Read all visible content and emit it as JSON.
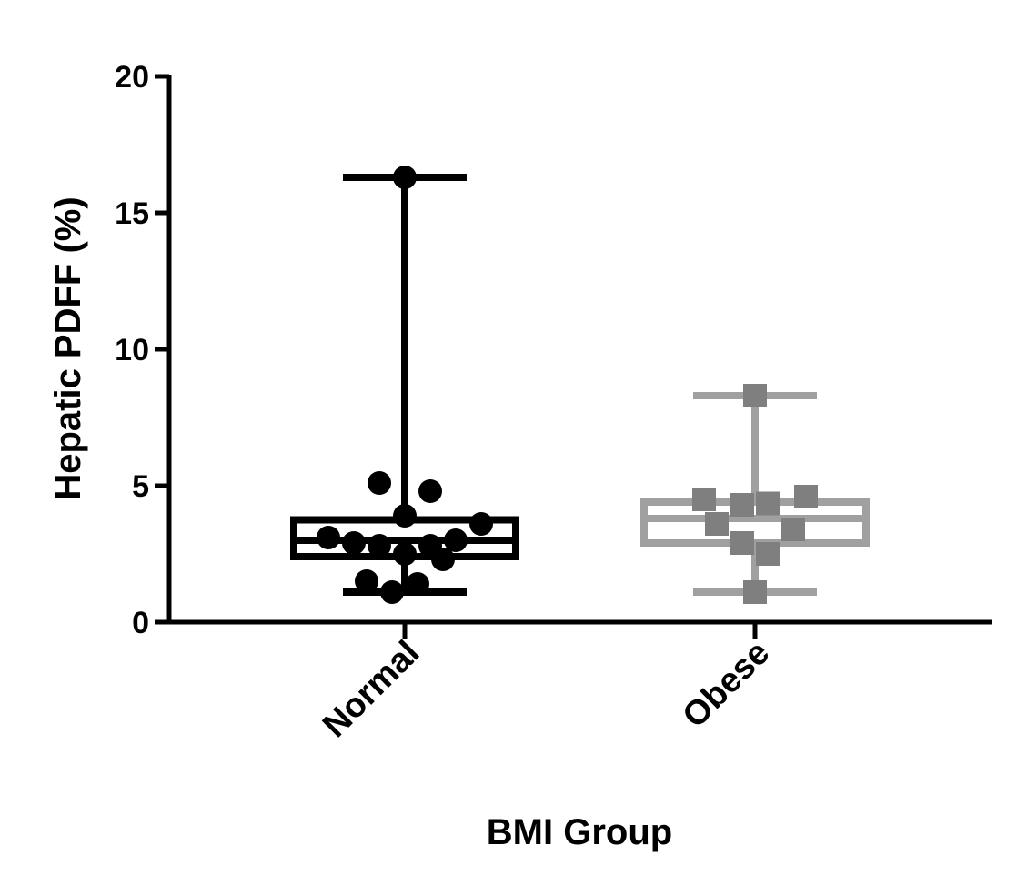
{
  "chart_data": {
    "type": "boxplot",
    "title": "",
    "xlabel": "BMI Group",
    "ylabel": "Hepatic PDFF  (%)",
    "ylim": [
      0,
      20
    ],
    "yticks": [
      0,
      5,
      10,
      15,
      20
    ],
    "categories": [
      "Normal",
      "Obese"
    ],
    "grid": false,
    "series": [
      {
        "category": "Normal",
        "color": "#000000",
        "marker": "circle",
        "box_fill": "none",
        "whisker_low": 1.1,
        "q1": 2.4,
        "median": 3.0,
        "q3": 3.75,
        "whisker_high": 16.3,
        "points": [
          {
            "offset": -0.3,
            "y": 3.1
          },
          {
            "offset": -0.2,
            "y": 2.9
          },
          {
            "offset": -0.1,
            "y": 5.1
          },
          {
            "offset": -0.1,
            "y": 2.8
          },
          {
            "offset": -0.15,
            "y": 1.5
          },
          {
            "offset": -0.05,
            "y": 1.1
          },
          {
            "offset": 0.0,
            "y": 16.3
          },
          {
            "offset": 0.0,
            "y": 3.9
          },
          {
            "offset": 0.0,
            "y": 2.5
          },
          {
            "offset": 0.05,
            "y": 1.4
          },
          {
            "offset": 0.1,
            "y": 4.8
          },
          {
            "offset": 0.1,
            "y": 2.8
          },
          {
            "offset": 0.15,
            "y": 2.3
          },
          {
            "offset": 0.2,
            "y": 3.0
          },
          {
            "offset": 0.3,
            "y": 3.6
          }
        ]
      },
      {
        "category": "Obese",
        "color": "#a0a0a0",
        "marker_color": "#7f7f7f",
        "marker": "square",
        "box_fill": "none",
        "whisker_low": 1.1,
        "q1": 2.9,
        "median": 3.8,
        "q3": 4.4,
        "whisker_high": 8.3,
        "points": [
          {
            "offset": -0.2,
            "y": 4.5
          },
          {
            "offset": -0.15,
            "y": 3.6
          },
          {
            "offset": -0.05,
            "y": 4.3
          },
          {
            "offset": -0.05,
            "y": 2.9
          },
          {
            "offset": 0.0,
            "y": 8.3
          },
          {
            "offset": 0.0,
            "y": 1.1
          },
          {
            "offset": 0.05,
            "y": 4.35
          },
          {
            "offset": 0.05,
            "y": 2.5
          },
          {
            "offset": 0.15,
            "y": 3.4
          },
          {
            "offset": 0.2,
            "y": 4.6
          }
        ]
      }
    ]
  }
}
